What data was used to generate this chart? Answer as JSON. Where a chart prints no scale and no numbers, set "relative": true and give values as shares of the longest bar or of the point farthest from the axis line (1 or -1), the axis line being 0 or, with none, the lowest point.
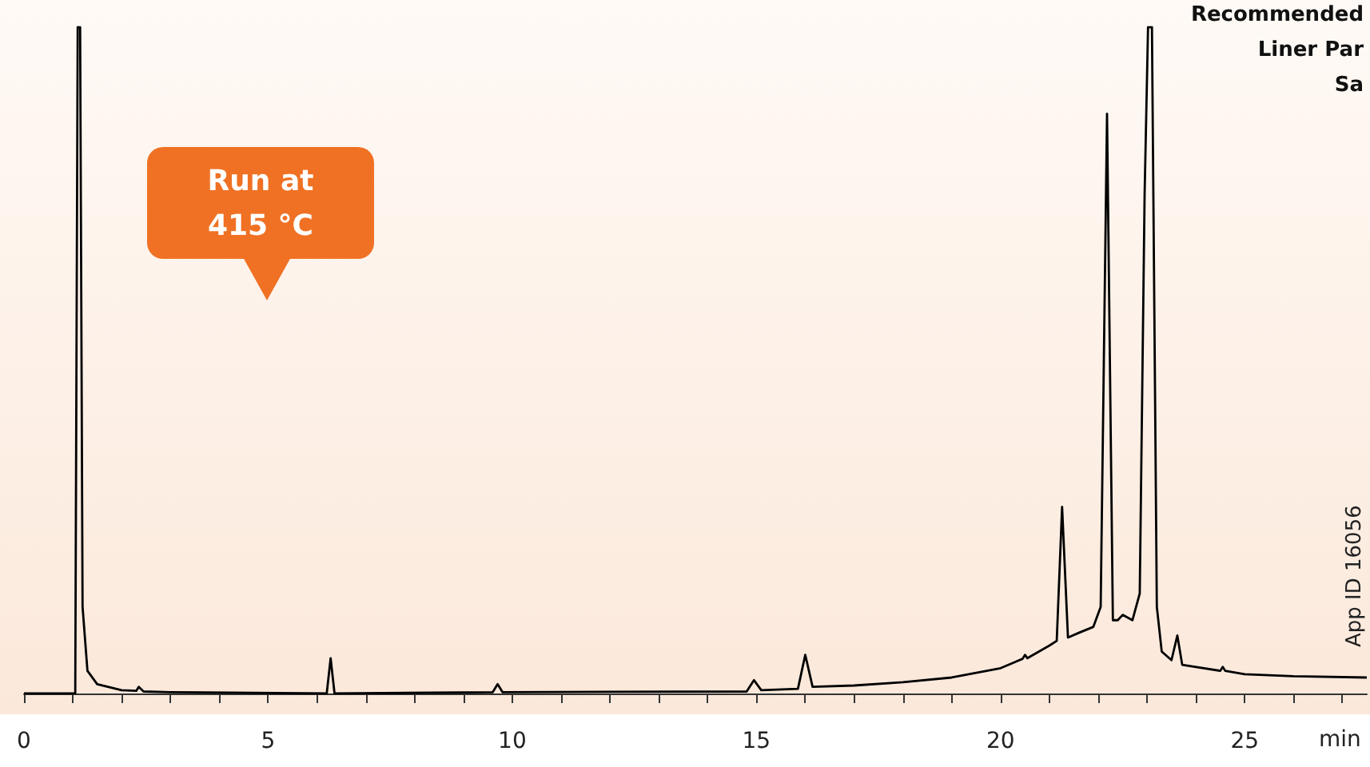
{
  "chart_data": {
    "type": "line",
    "relative": true,
    "xlabel": "min",
    "xlim": [
      0,
      27.5
    ],
    "xticks": [
      0,
      {
        "value": 1,
        "label": null
      },
      {
        "value": 2,
        "label": null
      },
      {
        "value": 3,
        "label": null
      },
      {
        "value": 4,
        "label": null
      },
      5,
      {
        "value": 6,
        "label": null
      },
      {
        "value": 7,
        "label": null
      },
      {
        "value": 8,
        "label": null
      },
      {
        "value": 9,
        "label": null
      },
      10,
      {
        "value": 11,
        "label": null
      },
      {
        "value": 12,
        "label": null
      },
      {
        "value": 13,
        "label": null
      },
      {
        "value": 14,
        "label": null
      },
      15,
      {
        "value": 16,
        "label": null
      },
      {
        "value": 17,
        "label": null
      },
      {
        "value": 18,
        "label": null
      },
      {
        "value": 19,
        "label": null
      },
      20,
      {
        "value": 21,
        "label": null
      },
      {
        "value": 22,
        "label": null
      },
      {
        "value": 23,
        "label": null
      },
      {
        "value": 24,
        "label": null
      },
      25,
      {
        "value": 26,
        "label": null
      },
      {
        "value": 27,
        "label": null
      }
    ],
    "x": [
      0,
      1.05,
      1.1,
      1.15,
      1.2,
      1.3,
      1.5,
      2.0,
      2.3,
      2.35,
      2.45,
      3,
      6.2,
      6.28,
      6.36,
      9.6,
      9.7,
      9.8,
      14.8,
      14.95,
      15.1,
      15.85,
      16.0,
      16.15,
      17,
      18,
      19,
      20,
      20.45,
      20.5,
      20.55,
      21,
      21.15,
      21.26,
      21.38,
      21.6,
      21.9,
      22.05,
      22.18,
      22.3,
      22.4,
      22.5,
      22.7,
      22.85,
      22.95,
      23.02,
      23.1,
      23.2,
      23.3,
      23.5,
      23.62,
      23.72,
      24.5,
      24.55,
      24.6,
      25,
      26,
      27.5
    ],
    "series": [
      {
        "color": "#000000",
        "values": [
          0,
          0,
          1,
          1,
          0.13,
          0.034,
          0.014,
          0.005,
          0.004,
          0.01,
          0.003,
          0.002,
          0,
          0.053,
          0,
          0.002,
          0.014,
          0.002,
          0.003,
          0.02,
          0.005,
          0.007,
          0.058,
          0.01,
          0.012,
          0.017,
          0.024,
          0.038,
          0.052,
          0.058,
          0.053,
          0.072,
          0.079,
          0.28,
          0.084,
          0.091,
          0.1,
          0.13,
          0.87,
          0.11,
          0.11,
          0.118,
          0.11,
          0.15,
          0.75,
          1,
          1,
          0.13,
          0.063,
          0.05,
          0.087,
          0.043,
          0.034,
          0.04,
          0.034,
          0.029,
          0.026,
          0.024
        ]
      }
    ],
    "marker": "none",
    "line_style": "solid",
    "grid": false,
    "annotations": [
      "Run at\n415 °C",
      "Recommended",
      "Liner Par",
      "Sa",
      "App ID 16056"
    ]
  }
}
